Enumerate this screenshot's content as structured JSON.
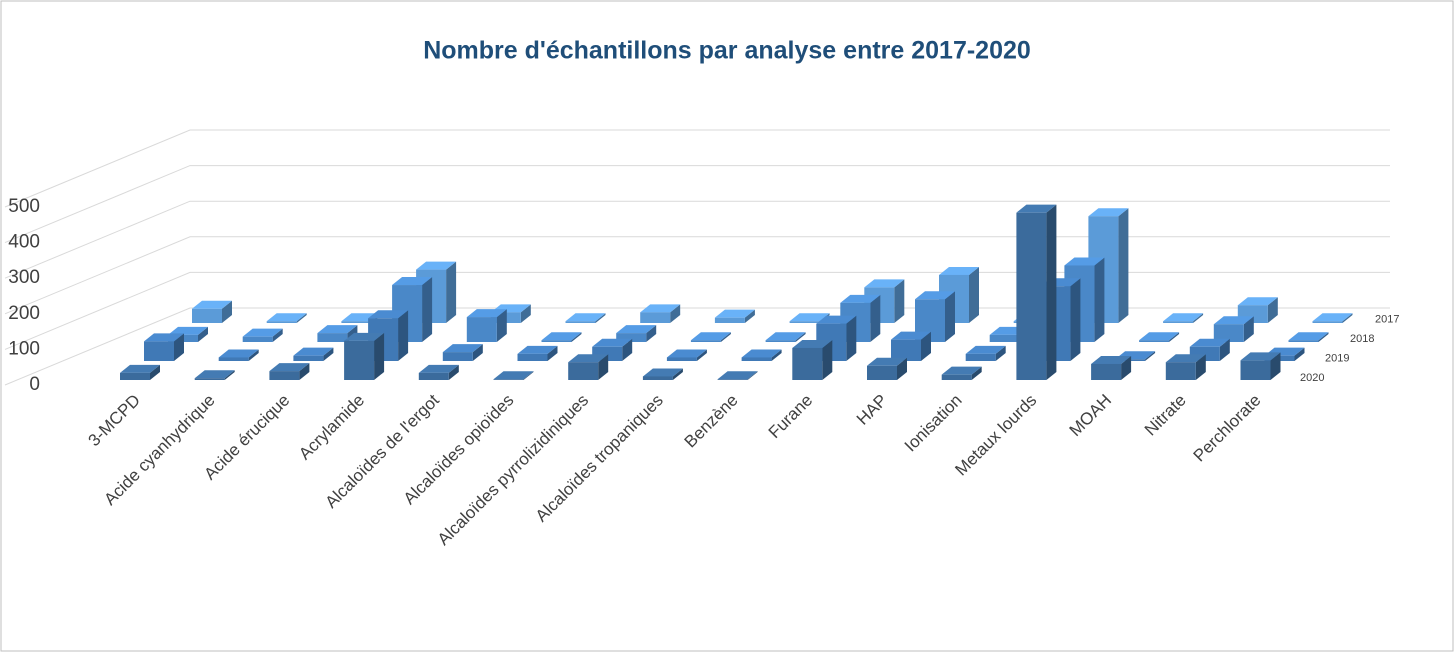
{
  "chart_data": {
    "type": "bar3d",
    "title": "Nombre d'échantillons par analyse entre 2017-2020",
    "categories": [
      "3-MCPD",
      "Acide cyanhydrique",
      "Acide érucique",
      "Acrylamide",
      "Alcaloïdes de l'ergot",
      "Alcaloïdes opioïdes",
      "Alcaloïdes pyrrolizidiniques",
      "Alcaloïdes tropaniques",
      "Benzène",
      "Furane",
      "HAP",
      "Ionisation",
      "Metaux lourds",
      "MOAH",
      "Nitrate",
      "Perchlorate"
    ],
    "series": [
      {
        "name": "2020",
        "color": "#3b6b9c",
        "values": [
          20,
          5,
          25,
          110,
          20,
          2,
          50,
          10,
          2,
          90,
          40,
          15,
          470,
          45,
          50,
          55
        ]
      },
      {
        "name": "2019",
        "color": "#4079b6",
        "values": [
          55,
          10,
          15,
          120,
          25,
          20,
          40,
          10,
          10,
          105,
          60,
          20,
          210,
          5,
          40,
          15
        ]
      },
      {
        "name": "2018",
        "color": "#4a88c8",
        "values": [
          20,
          15,
          25,
          160,
          70,
          5,
          25,
          5,
          5,
          110,
          120,
          20,
          215,
          5,
          50,
          5
        ]
      },
      {
        "name": "2017",
        "color": "#5b9bd8",
        "values": [
          40,
          5,
          5,
          150,
          30,
          5,
          30,
          15,
          5,
          100,
          135,
          5,
          300,
          5,
          50,
          5
        ]
      }
    ],
    "ylim": [
      0,
      500
    ],
    "yticks": [
      0,
      100,
      200,
      300,
      400,
      500
    ],
    "grid": true
  }
}
